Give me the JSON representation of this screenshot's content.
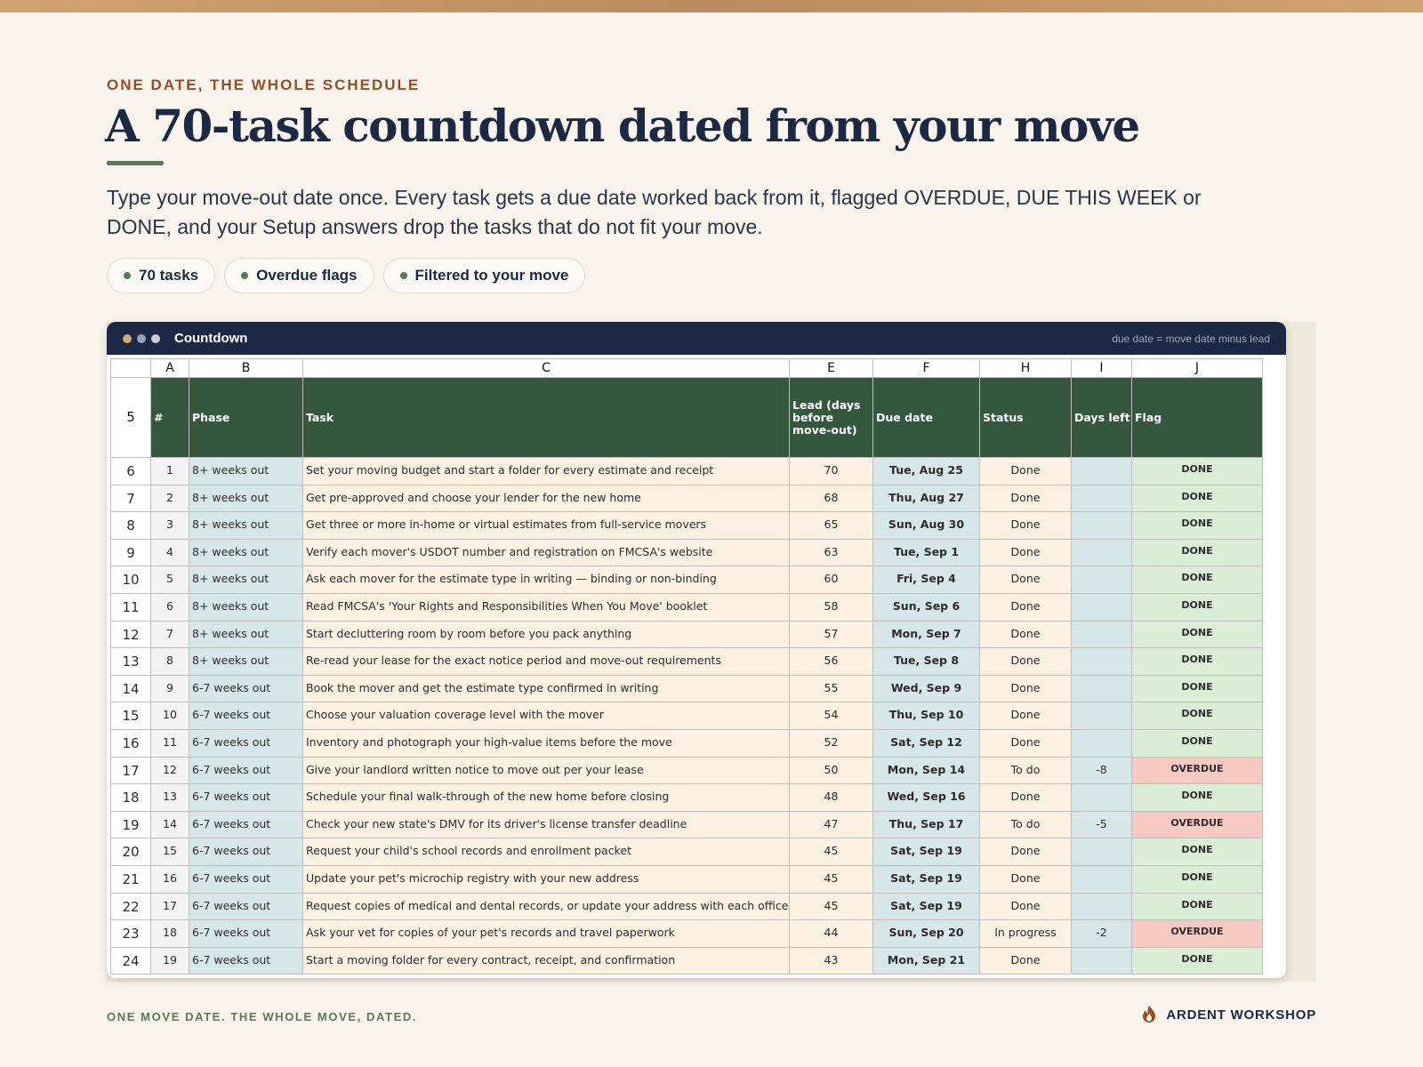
{
  "header": {
    "eyebrow": "ONE DATE, THE WHOLE SCHEDULE",
    "title": "A 70-task countdown dated from your move",
    "lede": "Type your move-out date once. Every task gets a due date worked back from it, flagged OVERDUE, DUE THIS WEEK or DONE, and your Setup answers drop the tasks that do not fit your move."
  },
  "pills": [
    "70 tasks",
    "Overdue flags",
    "Filtered to your move"
  ],
  "window": {
    "title": "Countdown",
    "note": "due date = move date minus lead",
    "dot_colors": [
      "#d9a86b",
      "#9aa3b5",
      "#c7ccd6"
    ]
  },
  "sheet": {
    "column_letters": [
      "A",
      "B",
      "C",
      "E",
      "F",
      "H",
      "I",
      "J"
    ],
    "header_row_number": "5",
    "headers": [
      "#",
      "Phase",
      "Task",
      "Lead (days before move-out)",
      "Due date",
      "Status",
      "Days left",
      "Flag"
    ],
    "rows": [
      {
        "row": "6",
        "num": "1",
        "phase": "8+ weeks out",
        "task": "Set your moving budget and start a folder for every estimate and receipt",
        "lead": "70",
        "due": "Tue, Aug 25",
        "status": "Done",
        "days": "",
        "flag": "DONE"
      },
      {
        "row": "7",
        "num": "2",
        "phase": "8+ weeks out",
        "task": "Get pre-approved and choose your lender for the new home",
        "lead": "68",
        "due": "Thu, Aug 27",
        "status": "Done",
        "days": "",
        "flag": "DONE"
      },
      {
        "row": "8",
        "num": "3",
        "phase": "8+ weeks out",
        "task": "Get three or more in-home or virtual estimates from full-service movers",
        "lead": "65",
        "due": "Sun, Aug 30",
        "status": "Done",
        "days": "",
        "flag": "DONE"
      },
      {
        "row": "9",
        "num": "4",
        "phase": "8+ weeks out",
        "task": "Verify each mover's USDOT number and registration on FMCSA's website",
        "lead": "63",
        "due": "Tue, Sep 1",
        "status": "Done",
        "days": "",
        "flag": "DONE"
      },
      {
        "row": "10",
        "num": "5",
        "phase": "8+ weeks out",
        "task": "Ask each mover for the estimate type in writing — binding or non-binding",
        "lead": "60",
        "due": "Fri, Sep 4",
        "status": "Done",
        "days": "",
        "flag": "DONE"
      },
      {
        "row": "11",
        "num": "6",
        "phase": "8+ weeks out",
        "task": "Read FMCSA's 'Your Rights and Responsibilities When You Move' booklet",
        "lead": "58",
        "due": "Sun, Sep 6",
        "status": "Done",
        "days": "",
        "flag": "DONE"
      },
      {
        "row": "12",
        "num": "7",
        "phase": "8+ weeks out",
        "task": "Start decluttering room by room before you pack anything",
        "lead": "57",
        "due": "Mon, Sep 7",
        "status": "Done",
        "days": "",
        "flag": "DONE"
      },
      {
        "row": "13",
        "num": "8",
        "phase": "8+ weeks out",
        "task": "Re-read your lease for the exact notice period and move-out requirements",
        "lead": "56",
        "due": "Tue, Sep 8",
        "status": "Done",
        "days": "",
        "flag": "DONE"
      },
      {
        "row": "14",
        "num": "9",
        "phase": "6-7 weeks out",
        "task": "Book the mover and get the estimate type confirmed in writing",
        "lead": "55",
        "due": "Wed, Sep 9",
        "status": "Done",
        "days": "",
        "flag": "DONE"
      },
      {
        "row": "15",
        "num": "10",
        "phase": "6-7 weeks out",
        "task": "Choose your valuation coverage level with the mover",
        "lead": "54",
        "due": "Thu, Sep 10",
        "status": "Done",
        "days": "",
        "flag": "DONE"
      },
      {
        "row": "16",
        "num": "11",
        "phase": "6-7 weeks out",
        "task": "Inventory and photograph your high-value items before the move",
        "lead": "52",
        "due": "Sat, Sep 12",
        "status": "Done",
        "days": "",
        "flag": "DONE"
      },
      {
        "row": "17",
        "num": "12",
        "phase": "6-7 weeks out",
        "task": "Give your landlord written notice to move out per your lease",
        "lead": "50",
        "due": "Mon, Sep 14",
        "status": "To do",
        "days": "-8",
        "flag": "OVERDUE"
      },
      {
        "row": "18",
        "num": "13",
        "phase": "6-7 weeks out",
        "task": "Schedule your final walk-through of the new home before closing",
        "lead": "48",
        "due": "Wed, Sep 16",
        "status": "Done",
        "days": "",
        "flag": "DONE"
      },
      {
        "row": "19",
        "num": "14",
        "phase": "6-7 weeks out",
        "task": "Check your new state's DMV for its driver's license transfer deadline",
        "lead": "47",
        "due": "Thu, Sep 17",
        "status": "To do",
        "days": "-5",
        "flag": "OVERDUE"
      },
      {
        "row": "20",
        "num": "15",
        "phase": "6-7 weeks out",
        "task": "Request your child's school records and enrollment packet",
        "lead": "45",
        "due": "Sat, Sep 19",
        "status": "Done",
        "days": "",
        "flag": "DONE"
      },
      {
        "row": "21",
        "num": "16",
        "phase": "6-7 weeks out",
        "task": "Update your pet's microchip registry with your new address",
        "lead": "45",
        "due": "Sat, Sep 19",
        "status": "Done",
        "days": "",
        "flag": "DONE"
      },
      {
        "row": "22",
        "num": "17",
        "phase": "6-7 weeks out",
        "task": "Request copies of medical and dental records, or update your address with each office",
        "lead": "45",
        "due": "Sat, Sep 19",
        "status": "Done",
        "days": "",
        "flag": "DONE"
      },
      {
        "row": "23",
        "num": "18",
        "phase": "6-7 weeks out",
        "task": "Ask your vet for copies of your pet's records and travel paperwork",
        "lead": "44",
        "due": "Sun, Sep 20",
        "status": "In progress",
        "days": "-2",
        "flag": "OVERDUE"
      },
      {
        "row": "24",
        "num": "19",
        "phase": "6-7 weeks out",
        "task": "Start a moving folder for every contract, receipt, and confirmation",
        "lead": "43",
        "due": "Mon, Sep 21",
        "status": "Done",
        "days": "",
        "flag": "DONE"
      }
    ]
  },
  "footer": {
    "tagline": "ONE MOVE DATE. THE WHOLE MOVE, DATED.",
    "brand": "ARDENT WORKSHOP",
    "brand_icon": "flame-icon"
  },
  "colors": {
    "accent_rust": "#a04a23",
    "navy": "#1c2945",
    "green_header": "#34573e",
    "done_bg": "#d9eed5",
    "overdue_bg": "#f6c9c1"
  }
}
